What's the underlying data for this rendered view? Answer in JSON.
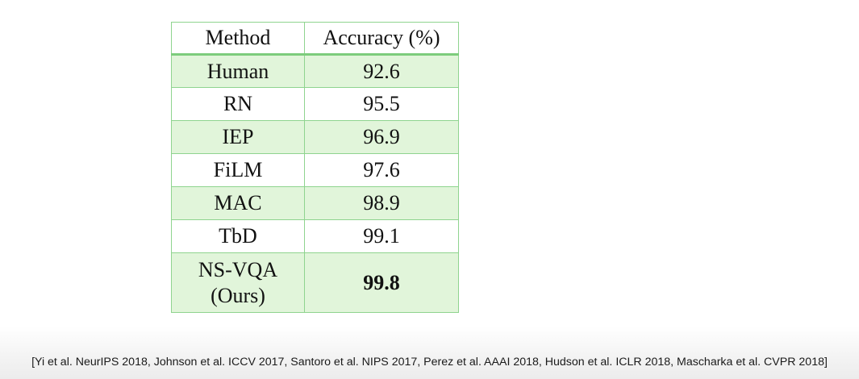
{
  "table": {
    "headers": [
      "Method",
      "Accuracy (%)"
    ],
    "rows": [
      {
        "method": "Human",
        "accuracy": "92.6"
      },
      {
        "method": "RN",
        "accuracy": "95.5"
      },
      {
        "method": "IEP",
        "accuracy": "96.9"
      },
      {
        "method": "FiLM",
        "accuracy": "97.6"
      },
      {
        "method": "MAC",
        "accuracy": "98.9"
      },
      {
        "method": "TbD",
        "accuracy": "99.1"
      },
      {
        "method_lines": [
          "NS-VQA",
          "(Ours)"
        ],
        "accuracy": "99.8"
      }
    ]
  },
  "footer": {
    "citation": "[Yi et al. NeurIPS 2018, Johnson et al. ICCV 2017, Santoro et al. NIPS 2017, Perez et al. AAAI 2018, Hudson et al. ICLR 2018, Mascharka et al. CVPR 2018]"
  },
  "colors": {
    "border": "#8fd48f",
    "shaded_row": "#e1f5da"
  }
}
